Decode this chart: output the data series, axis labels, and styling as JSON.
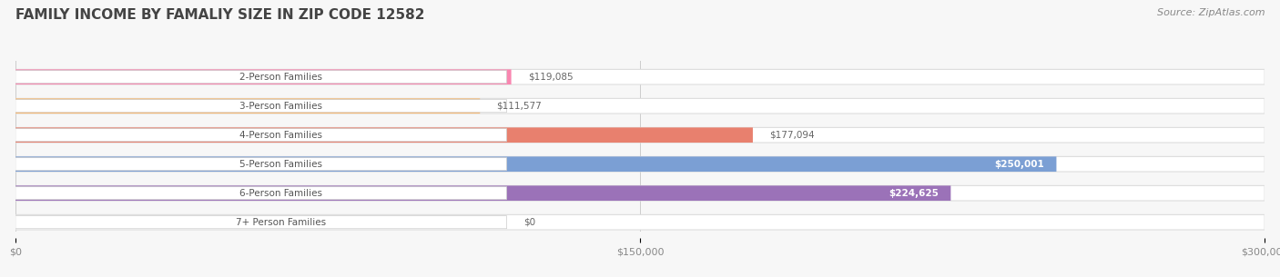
{
  "title": "FAMILY INCOME BY FAMALIY SIZE IN ZIP CODE 12582",
  "source": "Source: ZipAtlas.com",
  "categories": [
    "2-Person Families",
    "3-Person Families",
    "4-Person Families",
    "5-Person Families",
    "6-Person Families",
    "7+ Person Families"
  ],
  "values": [
    119085,
    111577,
    177094,
    250001,
    224625,
    0
  ],
  "bar_colors": [
    "#F986B0",
    "#F9B870",
    "#E8806E",
    "#7B9FD4",
    "#9B72B8",
    "#79CEC8"
  ],
  "background_color": "#f7f7f7",
  "xlim": [
    0,
    300000
  ],
  "xticks": [
    0,
    150000,
    300000
  ],
  "xtick_labels": [
    "$0",
    "$150,000",
    "$300,000"
  ],
  "value_labels": [
    "$119,085",
    "$111,577",
    "$177,094",
    "$250,001",
    "$224,625",
    "$0"
  ],
  "value_inside": [
    false,
    false,
    false,
    true,
    true,
    false
  ],
  "title_fontsize": 11,
  "label_fontsize": 7.5,
  "tick_fontsize": 8,
  "source_fontsize": 8
}
